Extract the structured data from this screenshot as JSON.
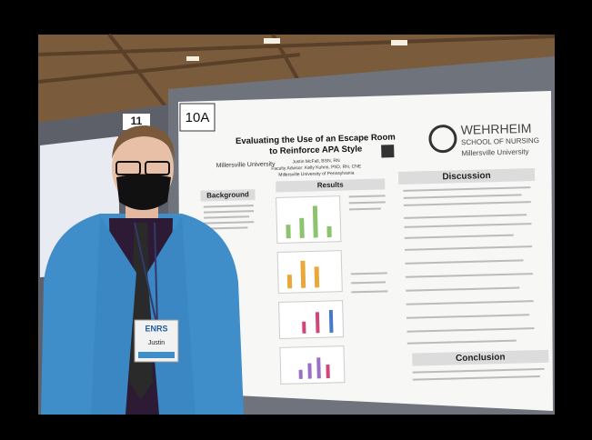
{
  "sign": "10A",
  "sign_left": "11",
  "poster": {
    "title_lines": [
      "Evaluating the Use of an Escape Room",
      "to Reinforce APA Style"
    ],
    "author": "Justin McFall, BSN, RN",
    "advisor": "Faculty Advisor: Kelly Kuhns, PhD, RN, CNE",
    "university": "Millersville University of Pennsylvania",
    "logo_left": "Millersville University",
    "school_name": "WEHRHEIM",
    "school_sub": "SCHOOL OF NURSING",
    "school_univ": "Millersville University",
    "sections": [
      "Background",
      "Results",
      "Discussion",
      "Conclusion"
    ]
  },
  "badge": {
    "event": "ENRS",
    "name": "Justin"
  }
}
